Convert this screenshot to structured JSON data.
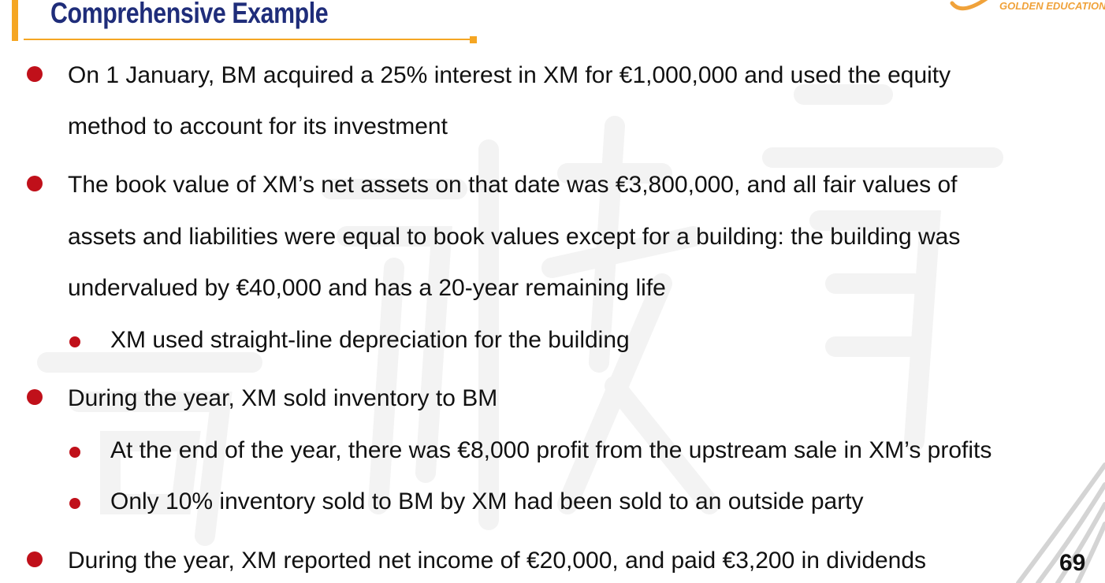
{
  "header": {
    "title": "Comprehensive Example",
    "brand": "GOLDEN EDUCATION"
  },
  "bullets": [
    {
      "lines": [
        "On 1 January, BM acquired a 25% interest in XM for €1,000,000 and used the equity",
        "method to account for its investment"
      ]
    },
    {
      "lines": [
        "The book value of XM’s net assets on that date was €3,800,000, and all fair values of",
        "assets and liabilities were equal to book values except for a building: the building was",
        "undervalued by €40,000 and has a 20-year remaining life"
      ],
      "sub": [
        "XM used straight-line depreciation for the building"
      ]
    },
    {
      "lines": [
        "During the year, XM sold inventory to BM"
      ],
      "sub": [
        "At the end of the year, there was €8,000 profit from the upstream sale in XM’s profits",
        "Only 10% inventory sold to BM by XM had been sold to an outside party"
      ]
    },
    {
      "lines": [
        "During the year, XM reported net income of €20,000, and paid €3,200 in dividends"
      ]
    }
  ],
  "page_number": "69",
  "colors": {
    "title": "#1f2d7a",
    "accent": "#f5a623",
    "bullet": "#c0101a"
  },
  "icons": [
    "logo-swoosh-icon",
    "corner-stripes-decoration"
  ]
}
